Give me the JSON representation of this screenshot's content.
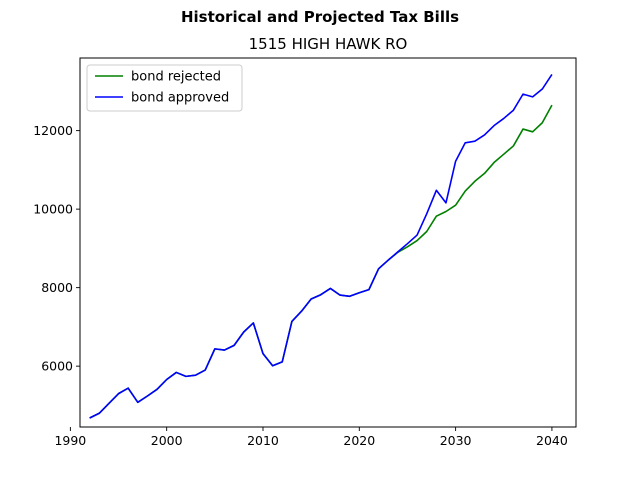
{
  "chart_data": {
    "type": "line",
    "suptitle": "Historical and Projected Tax Bills",
    "title": "1515 HIGH HAWK RO",
    "xlabel": "",
    "ylabel": "",
    "xlim": [
      1991,
      2042.5
    ],
    "ylim": [
      4450,
      13850
    ],
    "xticks": [
      1990,
      2000,
      2010,
      2020,
      2030,
      2040
    ],
    "yticks": [
      6000,
      8000,
      10000,
      12000
    ],
    "legend_position": "upper left",
    "grid": false,
    "series": [
      {
        "name": "bond rejected",
        "color": "#008000",
        "x": [
          1992,
          1993,
          1994,
          1995,
          1996,
          1997,
          1998,
          1999,
          2000,
          2001,
          2002,
          2003,
          2004,
          2005,
          2006,
          2007,
          2008,
          2009,
          2010,
          2011,
          2012,
          2013,
          2014,
          2015,
          2016,
          2017,
          2018,
          2019,
          2020,
          2021,
          2022,
          2023,
          2024,
          2025,
          2026,
          2027,
          2028,
          2029,
          2030,
          2031,
          2032,
          2033,
          2034,
          2035,
          2036,
          2037,
          2038,
          2039,
          2040
        ],
        "values": [
          4680,
          4800,
          5050,
          5300,
          5440,
          5080,
          5240,
          5410,
          5660,
          5840,
          5740,
          5770,
          5900,
          6440,
          6410,
          6530,
          6870,
          7100,
          6320,
          6010,
          6110,
          7140,
          7400,
          7710,
          7820,
          7980,
          7810,
          7780,
          7870,
          7950,
          8480,
          8700,
          8900,
          9040,
          9200,
          9430,
          9820,
          9940,
          10100,
          10460,
          10710,
          10910,
          11190,
          11400,
          11610,
          12040,
          11970,
          12200,
          12650
        ]
      },
      {
        "name": "bond approved",
        "color": "#0000ff",
        "x": [
          1992,
          1993,
          1994,
          1995,
          1996,
          1997,
          1998,
          1999,
          2000,
          2001,
          2002,
          2003,
          2004,
          2005,
          2006,
          2007,
          2008,
          2009,
          2010,
          2011,
          2012,
          2013,
          2014,
          2015,
          2016,
          2017,
          2018,
          2019,
          2020,
          2021,
          2022,
          2023,
          2024,
          2025,
          2026,
          2027,
          2028,
          2029,
          2030,
          2031,
          2032,
          2033,
          2034,
          2035,
          2036,
          2037,
          2038,
          2039,
          2040
        ],
        "values": [
          4680,
          4800,
          5050,
          5300,
          5440,
          5080,
          5240,
          5410,
          5660,
          5840,
          5740,
          5770,
          5900,
          6440,
          6410,
          6530,
          6870,
          7100,
          6320,
          6010,
          6110,
          7140,
          7400,
          7710,
          7820,
          7980,
          7810,
          7780,
          7870,
          7950,
          8480,
          8700,
          8910,
          9120,
          9340,
          9880,
          10480,
          10160,
          11220,
          11690,
          11730,
          11890,
          12130,
          12310,
          12520,
          12930,
          12860,
          13060,
          13430
        ]
      }
    ]
  }
}
